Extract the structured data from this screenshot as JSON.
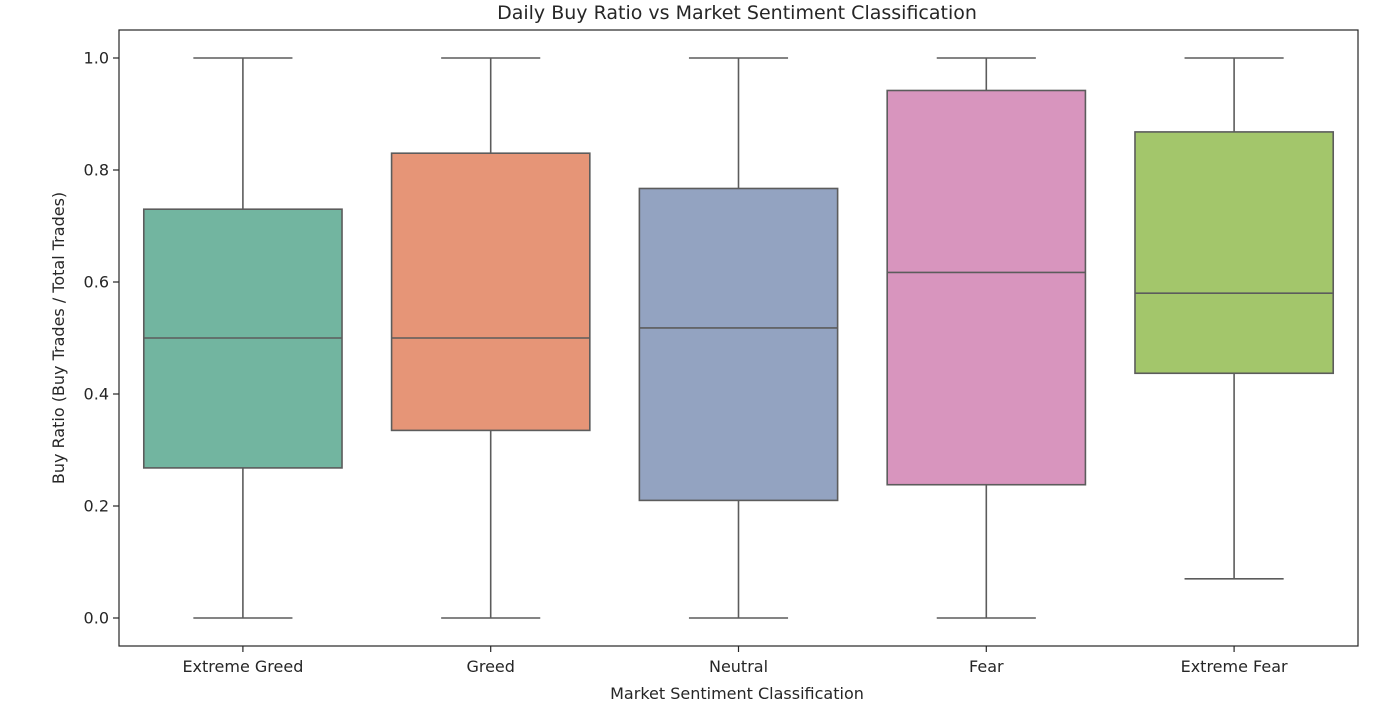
{
  "chart_data": {
    "type": "box",
    "title": "Daily Buy Ratio vs Market Sentiment Classification",
    "xlabel": "Market Sentiment Classification",
    "ylabel": "Buy Ratio (Buy Trades / Total Trades)",
    "ylim": [
      -0.05,
      1.05
    ],
    "yticks": [
      0.0,
      0.2,
      0.4,
      0.6,
      0.8,
      1.0
    ],
    "ytick_labels": [
      "0.0",
      "0.2",
      "0.4",
      "0.6",
      "0.8",
      "1.0"
    ],
    "grid": false,
    "categories": [
      "Extreme Greed",
      "Greed",
      "Neutral",
      "Fear",
      "Extreme Fear"
    ],
    "series": [
      {
        "category": "Extreme Greed",
        "whisker_low": 0.0,
        "q1": 0.268,
        "median": 0.5,
        "q3": 0.73,
        "whisker_high": 1.0,
        "color": "#72b5a0"
      },
      {
        "category": "Greed",
        "whisker_low": 0.0,
        "q1": 0.335,
        "median": 0.5,
        "q3": 0.83,
        "whisker_high": 1.0,
        "color": "#e69577"
      },
      {
        "category": "Neutral",
        "whisker_low": 0.0,
        "q1": 0.21,
        "median": 0.518,
        "q3": 0.767,
        "whisker_high": 1.0,
        "color": "#93a3c1"
      },
      {
        "category": "Fear",
        "whisker_low": 0.0,
        "q1": 0.238,
        "median": 0.617,
        "q3": 0.942,
        "whisker_high": 1.0,
        "color": "#d895be"
      },
      {
        "category": "Extreme Fear",
        "whisker_low": 0.07,
        "q1": 0.437,
        "median": 0.58,
        "q3": 0.868,
        "whisker_high": 1.0,
        "color": "#a3c66b"
      }
    ]
  }
}
